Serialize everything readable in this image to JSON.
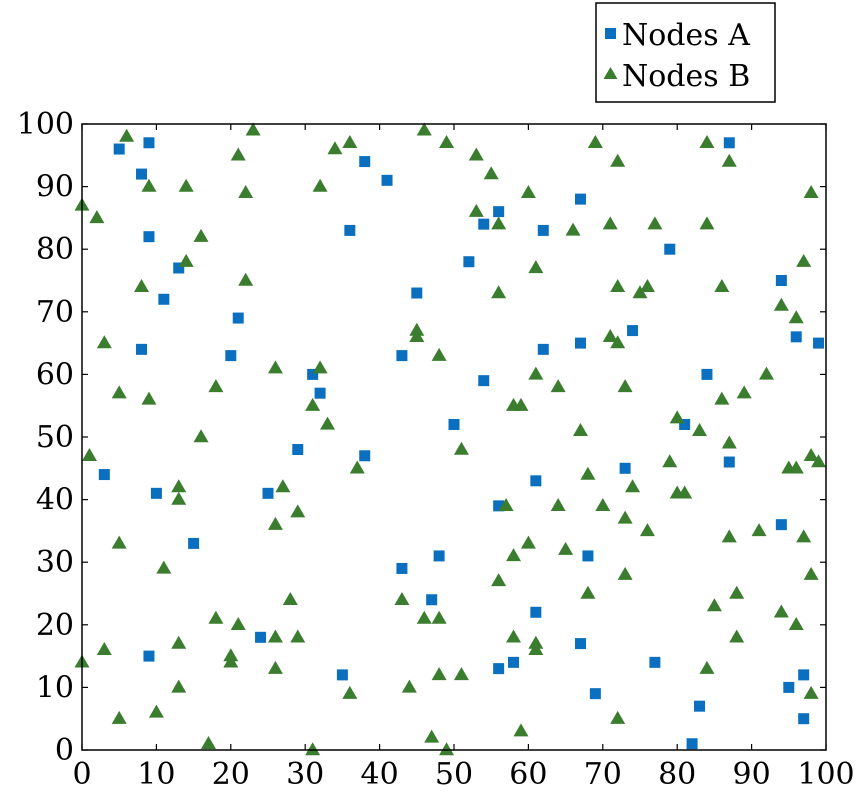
{
  "chart_data": {
    "type": "scatter",
    "title": "",
    "xlabel": "",
    "ylabel": "",
    "xlim": [
      0,
      100
    ],
    "ylim": [
      0,
      100
    ],
    "xticks": [
      0,
      10,
      20,
      30,
      40,
      50,
      60,
      70,
      80,
      90,
      100
    ],
    "yticks": [
      0,
      10,
      20,
      30,
      40,
      50,
      60,
      70,
      80,
      90,
      100
    ],
    "grid": false,
    "legend_position": "top-right, outside above plot",
    "series": [
      {
        "name": "Nodes A",
        "marker": "square",
        "color": "#0a6fbf",
        "points": [
          [
            5,
            96
          ],
          [
            9,
            97
          ],
          [
            8,
            92
          ],
          [
            9,
            82
          ],
          [
            13,
            77
          ],
          [
            11,
            72
          ],
          [
            8,
            64
          ],
          [
            21,
            69
          ],
          [
            20,
            63
          ],
          [
            3,
            44
          ],
          [
            10,
            41
          ],
          [
            15,
            33
          ],
          [
            9,
            15
          ],
          [
            24,
            18
          ],
          [
            25,
            41
          ],
          [
            29,
            48
          ],
          [
            31,
            60
          ],
          [
            32,
            57
          ],
          [
            36,
            83
          ],
          [
            38,
            94
          ],
          [
            41,
            91
          ],
          [
            38,
            47
          ],
          [
            35,
            12
          ],
          [
            43,
            63
          ],
          [
            45,
            73
          ],
          [
            43,
            29
          ],
          [
            47,
            24
          ],
          [
            48,
            31
          ],
          [
            50,
            52
          ],
          [
            52,
            78
          ],
          [
            54,
            84
          ],
          [
            56,
            86
          ],
          [
            54,
            59
          ],
          [
            56,
            39
          ],
          [
            56,
            13
          ],
          [
            58,
            14
          ],
          [
            61,
            43
          ],
          [
            61,
            22
          ],
          [
            62,
            83
          ],
          [
            62,
            64
          ],
          [
            67,
            88
          ],
          [
            67,
            65
          ],
          [
            68,
            31
          ],
          [
            67,
            17
          ],
          [
            69,
            9
          ],
          [
            73,
            45
          ],
          [
            74,
            67
          ],
          [
            77,
            14
          ],
          [
            79,
            80
          ],
          [
            81,
            52
          ],
          [
            82,
            1
          ],
          [
            83,
            7
          ],
          [
            84,
            60
          ],
          [
            87,
            97
          ],
          [
            87,
            46
          ],
          [
            94,
            75
          ],
          [
            94,
            36
          ],
          [
            95,
            10
          ],
          [
            96,
            66
          ],
          [
            97,
            12
          ],
          [
            97,
            5
          ],
          [
            99,
            65
          ]
        ]
      },
      {
        "name": "Nodes B",
        "marker": "triangle",
        "color": "#3a7d2e",
        "points": [
          [
            0,
            87
          ],
          [
            2,
            85
          ],
          [
            3,
            65
          ],
          [
            1,
            47
          ],
          [
            0,
            14
          ],
          [
            3,
            16
          ],
          [
            5,
            57
          ],
          [
            5,
            33
          ],
          [
            5,
            5
          ],
          [
            6,
            98
          ],
          [
            8,
            74
          ],
          [
            9,
            90
          ],
          [
            9,
            56
          ],
          [
            10,
            6
          ],
          [
            11,
            29
          ],
          [
            13,
            42
          ],
          [
            13,
            40
          ],
          [
            13,
            17
          ],
          [
            13,
            10
          ],
          [
            14,
            90
          ],
          [
            14,
            78
          ],
          [
            16,
            82
          ],
          [
            16,
            50
          ],
          [
            17,
            1
          ],
          [
            18,
            58
          ],
          [
            18,
            21
          ],
          [
            20,
            15
          ],
          [
            20,
            14
          ],
          [
            21,
            95
          ],
          [
            21,
            20
          ],
          [
            22,
            89
          ],
          [
            22,
            75
          ],
          [
            23,
            99
          ],
          [
            26,
            61
          ],
          [
            26,
            36
          ],
          [
            26,
            18
          ],
          [
            26,
            13
          ],
          [
            27,
            42
          ],
          [
            28,
            24
          ],
          [
            29,
            38
          ],
          [
            29,
            18
          ],
          [
            31,
            55
          ],
          [
            31,
            0
          ],
          [
            32,
            90
          ],
          [
            32,
            61
          ],
          [
            33,
            52
          ],
          [
            34,
            96
          ],
          [
            36,
            97
          ],
          [
            36,
            9
          ],
          [
            37,
            45
          ],
          [
            44,
            10
          ],
          [
            43,
            24
          ],
          [
            45,
            67
          ],
          [
            45,
            66
          ],
          [
            46,
            99
          ],
          [
            46,
            21
          ],
          [
            47,
            2
          ],
          [
            48,
            63
          ],
          [
            48,
            21
          ],
          [
            48,
            12
          ],
          [
            49,
            97
          ],
          [
            49,
            0
          ],
          [
            51,
            48
          ],
          [
            51,
            12
          ],
          [
            53,
            95
          ],
          [
            53,
            86
          ],
          [
            55,
            92
          ],
          [
            56,
            84
          ],
          [
            56,
            73
          ],
          [
            56,
            27
          ],
          [
            57,
            39
          ],
          [
            58,
            55
          ],
          [
            58,
            31
          ],
          [
            58,
            18
          ],
          [
            59,
            55
          ],
          [
            59,
            3
          ],
          [
            60,
            89
          ],
          [
            60,
            33
          ],
          [
            61,
            77
          ],
          [
            61,
            60
          ],
          [
            61,
            17
          ],
          [
            61,
            16
          ],
          [
            64,
            58
          ],
          [
            64,
            39
          ],
          [
            65,
            32
          ],
          [
            66,
            83
          ],
          [
            67,
            51
          ],
          [
            68,
            44
          ],
          [
            68,
            25
          ],
          [
            69,
            97
          ],
          [
            70,
            39
          ],
          [
            71,
            84
          ],
          [
            71,
            66
          ],
          [
            72,
            94
          ],
          [
            72,
            74
          ],
          [
            72,
            65
          ],
          [
            72,
            5
          ],
          [
            73,
            58
          ],
          [
            73,
            37
          ],
          [
            73,
            28
          ],
          [
            74,
            42
          ],
          [
            75,
            73
          ],
          [
            76,
            74
          ],
          [
            76,
            35
          ],
          [
            77,
            84
          ],
          [
            79,
            46
          ],
          [
            80,
            53
          ],
          [
            80,
            41
          ],
          [
            81,
            41
          ],
          [
            83,
            51
          ],
          [
            84,
            97
          ],
          [
            84,
            84
          ],
          [
            84,
            13
          ],
          [
            85,
            23
          ],
          [
            86,
            74
          ],
          [
            86,
            56
          ],
          [
            87,
            94
          ],
          [
            87,
            49
          ],
          [
            87,
            34
          ],
          [
            88,
            25
          ],
          [
            88,
            18
          ],
          [
            89,
            57
          ],
          [
            91,
            35
          ],
          [
            92,
            60
          ],
          [
            94,
            71
          ],
          [
            94,
            22
          ],
          [
            95,
            45
          ],
          [
            96,
            69
          ],
          [
            96,
            45
          ],
          [
            96,
            20
          ],
          [
            97,
            78
          ],
          [
            97,
            34
          ],
          [
            98,
            89
          ],
          [
            98,
            47
          ],
          [
            98,
            28
          ],
          [
            98,
            9
          ],
          [
            99,
            46
          ]
        ]
      }
    ]
  }
}
